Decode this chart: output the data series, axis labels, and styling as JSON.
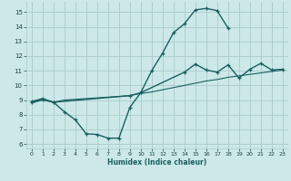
{
  "title": "",
  "xlabel": "Humidex (Indice chaleur)",
  "background_color": "#cce8e8",
  "grid_color": "#aacccc",
  "line_color": "#1a6060",
  "xlim": [
    -0.5,
    23.5
  ],
  "ylim": [
    5.7,
    15.7
  ],
  "xticks": [
    0,
    1,
    2,
    3,
    4,
    5,
    6,
    7,
    8,
    9,
    10,
    11,
    12,
    13,
    14,
    15,
    16,
    17,
    18,
    19,
    20,
    21,
    22,
    23
  ],
  "yticks": [
    6,
    7,
    8,
    9,
    10,
    11,
    12,
    13,
    14,
    15
  ],
  "curve1_x": [
    0,
    1,
    2,
    3,
    4,
    5,
    6,
    7,
    8,
    9,
    10,
    11,
    12,
    13,
    14,
    15,
    16,
    17,
    18
  ],
  "curve1_y": [
    8.9,
    9.1,
    8.85,
    8.2,
    7.65,
    6.7,
    6.65,
    6.4,
    6.4,
    8.5,
    9.5,
    11.0,
    12.2,
    13.6,
    14.2,
    15.15,
    15.25,
    15.1,
    13.9
  ],
  "curve2_x": [
    0,
    1,
    2,
    3,
    4,
    5,
    6,
    7,
    8,
    9,
    10,
    11,
    12,
    13,
    14,
    15,
    16,
    17,
    18,
    19,
    20,
    21,
    22,
    23
  ],
  "curve2_y": [
    8.8,
    9.0,
    8.85,
    9.0,
    9.05,
    9.1,
    9.15,
    9.2,
    9.25,
    9.3,
    9.45,
    9.55,
    9.7,
    9.85,
    10.0,
    10.15,
    10.3,
    10.4,
    10.55,
    10.65,
    10.75,
    10.85,
    10.95,
    11.05
  ],
  "curve3_x": [
    0,
    1,
    2,
    9,
    10,
    14,
    15,
    16,
    17,
    18,
    19,
    20,
    21,
    22,
    23
  ],
  "curve3_y": [
    8.85,
    9.05,
    8.85,
    9.3,
    9.5,
    10.9,
    11.45,
    11.05,
    10.9,
    11.4,
    10.5,
    11.1,
    11.5,
    11.05,
    11.1
  ]
}
